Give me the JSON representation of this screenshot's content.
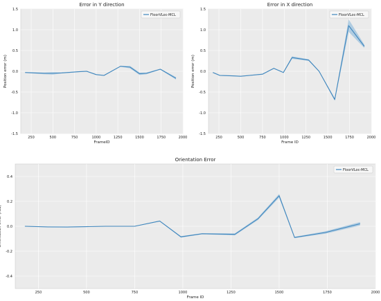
{
  "colors": {
    "line": "#3f86bd",
    "band": "#7fb2d8",
    "plot_bg": "#ebebeb",
    "grid": "#ffffff",
    "axis": "#555555"
  },
  "chart_data": [
    {
      "type": "line",
      "title": "Error in Y direction",
      "xlabel": "FrameID",
      "ylabel": "Position error (m)",
      "xlim": [
        130,
        2000
      ],
      "ylim": [
        -1.5,
        1.5
      ],
      "xticks": [
        250,
        500,
        750,
        1000,
        1250,
        1500,
        1750,
        2000
      ],
      "yticks": [
        -1.5,
        -1.0,
        -0.5,
        0.0,
        0.5,
        1.0,
        1.5
      ],
      "xtick_labels": [
        "250",
        "500",
        "750",
        "1000",
        "1250",
        "1500",
        "1750",
        "2000"
      ],
      "ytick_labels": [
        "-1.5",
        "-1.0",
        "-0.5",
        "0.0",
        "0.5",
        "1.0",
        "1.5"
      ],
      "grid": true,
      "legend": "top-right",
      "series": [
        {
          "name": "FloorVLoc-MCL",
          "x": [
            180,
            400,
            500,
            600,
            800,
            890,
            1000,
            1090,
            1280,
            1390,
            1500,
            1580,
            1740,
            1920
          ],
          "y": [
            -0.03,
            -0.05,
            -0.05,
            -0.04,
            -0.01,
            0.0,
            -0.08,
            -0.1,
            0.12,
            0.1,
            -0.06,
            -0.05,
            0.05,
            -0.17
          ],
          "band": [
            0.01,
            0.02,
            0.03,
            0.01,
            0.01,
            0.01,
            0.01,
            0.01,
            0.01,
            0.03,
            0.03,
            0.02,
            0.01,
            0.03
          ]
        }
      ]
    },
    {
      "type": "line",
      "title": "Error in X direction",
      "xlabel": "Frame ID",
      "ylabel": "Position error (m)",
      "xlim": [
        130,
        2000
      ],
      "ylim": [
        -1.5,
        1.5
      ],
      "xticks": [
        250,
        500,
        750,
        1000,
        1250,
        1500,
        1750,
        2000
      ],
      "yticks": [
        -1.5,
        -1.0,
        -0.5,
        0.0,
        0.5,
        1.0,
        1.5
      ],
      "xtick_labels": [
        "250",
        "500",
        "750",
        "1000",
        "1250",
        "1500",
        "1750",
        "2000"
      ],
      "ytick_labels": [
        "-1.5",
        "-1.0",
        "-0.5",
        "0.0",
        "0.5",
        "1.0",
        "1.5"
      ],
      "grid": true,
      "legend": "top-right",
      "series": [
        {
          "name": "FloorVLoc-MCL",
          "x": [
            180,
            260,
            400,
            500,
            600,
            750,
            880,
            990,
            1090,
            1280,
            1400,
            1580,
            1740,
            1920
          ],
          "y": [
            -0.03,
            -0.1,
            -0.11,
            -0.12,
            -0.1,
            -0.07,
            0.07,
            -0.03,
            0.33,
            0.27,
            0.0,
            -0.68,
            1.1,
            0.6
          ],
          "band": [
            0.01,
            0.01,
            0.01,
            0.01,
            0.01,
            0.01,
            0.01,
            0.01,
            0.03,
            0.02,
            0.01,
            0.03,
            0.15,
            0.04
          ]
        }
      ]
    },
    {
      "type": "line",
      "title": "Orientation Error",
      "xlabel": "Frame ID",
      "ylabel": "Orientation error (rad)",
      "xlim": [
        130,
        2000
      ],
      "ylim": [
        -0.5,
        0.5
      ],
      "xticks": [
        250,
        500,
        750,
        1000,
        1250,
        1500,
        1750,
        2000
      ],
      "yticks": [
        -0.4,
        -0.2,
        0.0,
        0.2,
        0.4
      ],
      "xtick_labels": [
        "250",
        "500",
        "750",
        "1000",
        "1250",
        "1500",
        "1750",
        "2000"
      ],
      "ytick_labels": [
        "-0.4",
        "-0.2",
        "0.0",
        "0.2",
        "0.4"
      ],
      "grid": true,
      "legend": "top-right",
      "series": [
        {
          "name": "FloorVLoc-MCL",
          "x": [
            180,
            300,
            400,
            500,
            600,
            750,
            880,
            990,
            1100,
            1270,
            1390,
            1500,
            1580,
            1740,
            1920
          ],
          "y": [
            0.0,
            -0.005,
            -0.006,
            -0.003,
            0.0,
            0.0,
            0.042,
            -0.085,
            -0.06,
            -0.065,
            0.06,
            0.245,
            -0.09,
            -0.05,
            0.02
          ],
          "band": [
            0.002,
            0.002,
            0.003,
            0.002,
            0.002,
            0.002,
            0.003,
            0.006,
            0.004,
            0.008,
            0.01,
            0.015,
            0.005,
            0.01,
            0.014
          ]
        }
      ]
    }
  ]
}
